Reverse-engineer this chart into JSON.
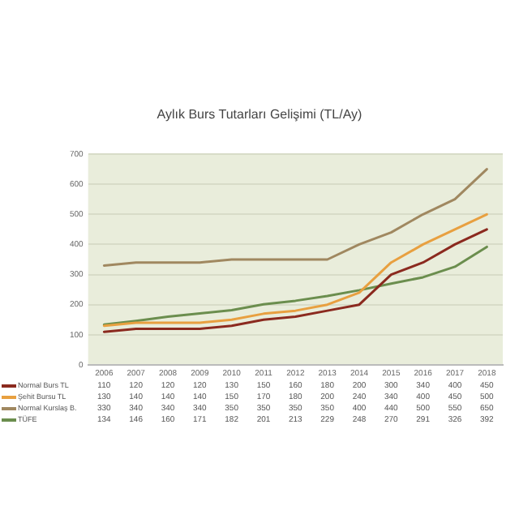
{
  "chart_data": {
    "type": "line",
    "title": "Aylık Burs Tutarları Gelişimi (TL/Ay)",
    "categories": [
      "2006",
      "2007",
      "2008",
      "2009",
      "2010",
      "2011",
      "2012",
      "2013",
      "2014",
      "2015",
      "2016",
      "2017",
      "2018"
    ],
    "series": [
      {
        "name": "Normal Burs TL",
        "color": "#8b2a1f",
        "values": [
          110,
          120,
          120,
          120,
          130,
          150,
          160,
          180,
          200,
          300,
          340,
          400,
          450
        ]
      },
      {
        "name": "Şehit Bursu TL",
        "color": "#e8a040",
        "values": [
          130,
          140,
          140,
          140,
          150,
          170,
          180,
          200,
          240,
          340,
          400,
          450,
          500
        ]
      },
      {
        "name": "Normal Kurslaş B.",
        "color": "#a08860",
        "values": [
          330,
          340,
          340,
          340,
          350,
          350,
          350,
          350,
          400,
          440,
          500,
          550,
          650
        ]
      },
      {
        "name": "TÜFE",
        "color": "#6b8e4e",
        "values": [
          134,
          146,
          160,
          171,
          182,
          201,
          213,
          229,
          248,
          270,
          291,
          326,
          392
        ]
      }
    ],
    "ylim": [
      0,
      700
    ],
    "yticks": [
      0,
      100,
      200,
      300,
      400,
      500,
      600,
      700
    ],
    "grid": "y",
    "legend": "bottom",
    "data_labels": true,
    "marker": "none"
  }
}
